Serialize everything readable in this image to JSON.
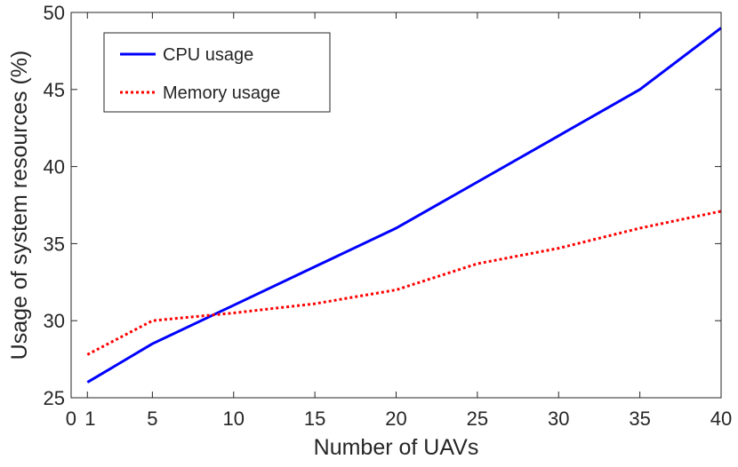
{
  "chart_data": {
    "type": "line",
    "title": "",
    "xlabel": "Number of UAVs",
    "ylabel": "Usage of system resources (%)",
    "xlim": [
      0,
      40
    ],
    "ylim": [
      25,
      50
    ],
    "x_ticks": [
      0,
      1,
      5,
      10,
      15,
      20,
      25,
      30,
      35,
      40
    ],
    "x_tick_labels": [
      "0",
      "1",
      "5",
      "10",
      "15",
      "20",
      "25",
      "30",
      "35",
      "40"
    ],
    "y_ticks": [
      25,
      30,
      35,
      40,
      45,
      50
    ],
    "y_tick_labels": [
      "25",
      "30",
      "35",
      "40",
      "45",
      "50"
    ],
    "grid": false,
    "legend_position": "top-left",
    "series": [
      {
        "name": "CPU usage",
        "color": "#0000ff",
        "style": "solid",
        "x": [
          1,
          5,
          10,
          15,
          20,
          25,
          30,
          35,
          40
        ],
        "y": [
          26.0,
          28.5,
          31.0,
          33.5,
          36.0,
          39.0,
          42.0,
          45.0,
          49.0
        ]
      },
      {
        "name": "Memory usage",
        "color": "#ff0000",
        "style": "dotted",
        "x": [
          1,
          5,
          10,
          15,
          20,
          25,
          30,
          35,
          40
        ],
        "y": [
          27.8,
          30.0,
          30.5,
          31.1,
          32.0,
          33.7,
          34.7,
          36.0,
          37.1
        ]
      }
    ]
  }
}
